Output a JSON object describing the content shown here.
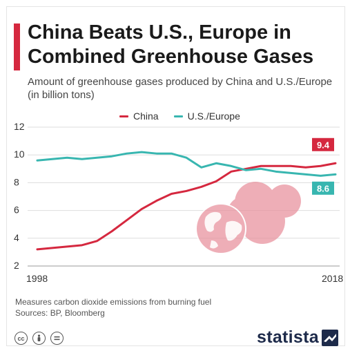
{
  "header": {
    "title": "China Beats U.S., Europe in Combined Greenhouse Gases",
    "subtitle": "Amount of greenhouse gases produced by China and U.S./Europe (in billion tons)"
  },
  "colors": {
    "accent": "#d5283f",
    "china": "#d5283f",
    "us_europe": "#38b6b0",
    "globe": "#e8909c"
  },
  "chart_data": {
    "type": "line",
    "x": [
      1998,
      1999,
      2000,
      2001,
      2002,
      2003,
      2004,
      2005,
      2006,
      2007,
      2008,
      2009,
      2010,
      2011,
      2012,
      2013,
      2014,
      2015,
      2016,
      2017,
      2018
    ],
    "series": [
      {
        "name": "China",
        "values": [
          3.2,
          3.3,
          3.4,
          3.5,
          3.8,
          4.5,
          5.3,
          6.1,
          6.7,
          7.2,
          7.4,
          7.7,
          8.1,
          8.8,
          9.0,
          9.2,
          9.2,
          9.2,
          9.1,
          9.2,
          9.4
        ]
      },
      {
        "name": "U.S./Europe",
        "values": [
          9.6,
          9.7,
          9.8,
          9.7,
          9.8,
          9.9,
          10.1,
          10.2,
          10.1,
          10.1,
          9.8,
          9.1,
          9.4,
          9.2,
          8.9,
          9.0,
          8.8,
          8.7,
          8.6,
          8.5,
          8.6
        ]
      }
    ],
    "xticks": [
      "1998",
      "2018"
    ],
    "yticks": [
      2,
      4,
      6,
      8,
      10,
      12
    ],
    "ylim": [
      2,
      12
    ],
    "xlabel": "",
    "ylabel": "",
    "end_labels": {
      "china": "9.4",
      "us_europe": "8.6"
    },
    "grid": true,
    "legend_position": "top"
  },
  "footer": {
    "note": "Measures carbon dioxide emissions from burning fuel",
    "sources": "Sources: BP, Bloomberg",
    "brand": "statista",
    "license_icons": [
      "cc-icon",
      "person-icon",
      "equals-icon"
    ]
  }
}
